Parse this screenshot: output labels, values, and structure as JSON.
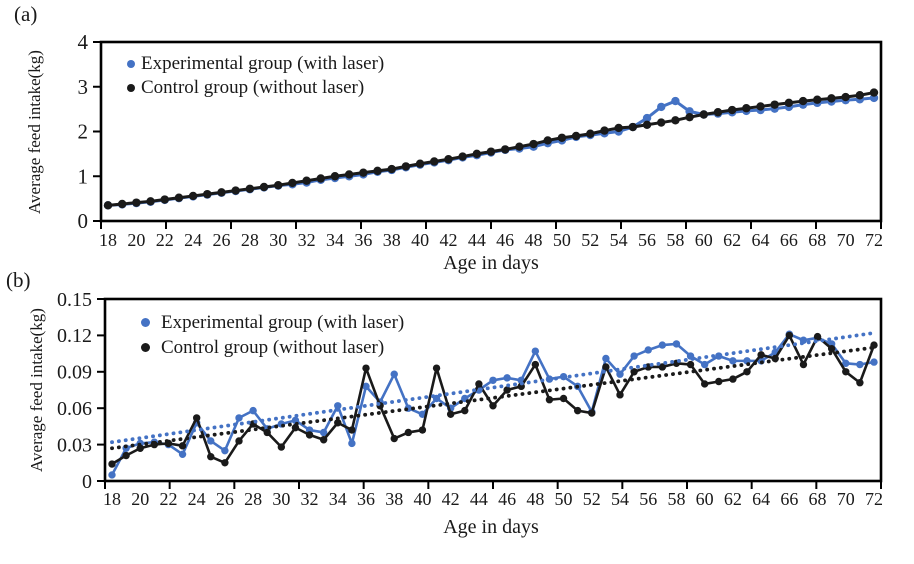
{
  "figure": {
    "background": "#ffffff",
    "text_color": "#1a1a1a",
    "accent_blue": "#4472C4",
    "accent_black": "#1a1a1a"
  },
  "chart_data": [
    {
      "id": "a",
      "type": "line",
      "panel_label": "(a)",
      "xlabel": "Age in days",
      "ylabel": "Average feed intake(kg)",
      "xlim": [
        18,
        72
      ],
      "ylim": [
        0,
        4
      ],
      "grid": false,
      "legend_position": "top-left-inside",
      "x_days": [
        18,
        19,
        20,
        21,
        22,
        23,
        24,
        25,
        26,
        27,
        28,
        29,
        30,
        31,
        32,
        33,
        34,
        35,
        36,
        37,
        38,
        39,
        40,
        41,
        42,
        43,
        44,
        45,
        46,
        47,
        48,
        49,
        50,
        51,
        52,
        53,
        54,
        55,
        56,
        57,
        58,
        59,
        60,
        61,
        62,
        63,
        64,
        65,
        66,
        67,
        68,
        69,
        70,
        71,
        72
      ],
      "xtick_labels": [
        18,
        20,
        22,
        24,
        26,
        28,
        30,
        32,
        34,
        36,
        38,
        40,
        42,
        44,
        46,
        48,
        50,
        52,
        54,
        56,
        58,
        60,
        62,
        64,
        66,
        68,
        70,
        72
      ],
      "xtick_marks": [
        18,
        22.5,
        27,
        31.5,
        36,
        40.5,
        45,
        49.5,
        54,
        58.5,
        63,
        67.5,
        72
      ],
      "yticks": [
        {
          "v": 0,
          "label": "0"
        },
        {
          "v": 1,
          "label": "1"
        },
        {
          "v": 2,
          "label": "2"
        },
        {
          "v": 3,
          "label": "3"
        },
        {
          "v": 4,
          "label": "4"
        }
      ],
      "series": [
        {
          "name": "Experimental group (with laser)",
          "color": "#4472C4",
          "marker": "circle",
          "values": [
            0.35,
            0.37,
            0.4,
            0.43,
            0.47,
            0.51,
            0.55,
            0.59,
            0.63,
            0.67,
            0.71,
            0.75,
            0.79,
            0.82,
            0.86,
            0.92,
            0.96,
            1.0,
            1.04,
            1.1,
            1.14,
            1.2,
            1.26,
            1.31,
            1.36,
            1.42,
            1.47,
            1.53,
            1.59,
            1.62,
            1.66,
            1.74,
            1.8,
            1.88,
            1.92,
            1.96,
            2.0,
            2.1,
            2.3,
            2.55,
            2.68,
            2.45,
            2.38,
            2.4,
            2.43,
            2.46,
            2.48,
            2.51,
            2.55,
            2.6,
            2.64,
            2.67,
            2.7,
            2.72,
            2.75
          ]
        },
        {
          "name": "Control group (without laser)",
          "color": "#1a1a1a",
          "marker": "circle",
          "values": [
            0.35,
            0.38,
            0.41,
            0.44,
            0.48,
            0.52,
            0.56,
            0.6,
            0.64,
            0.68,
            0.72,
            0.76,
            0.8,
            0.85,
            0.9,
            0.95,
            1.0,
            1.04,
            1.08,
            1.12,
            1.16,
            1.22,
            1.28,
            1.33,
            1.38,
            1.44,
            1.5,
            1.55,
            1.6,
            1.66,
            1.72,
            1.8,
            1.86,
            1.9,
            1.95,
            2.02,
            2.08,
            2.1,
            2.15,
            2.2,
            2.25,
            2.32,
            2.38,
            2.43,
            2.48,
            2.52,
            2.56,
            2.6,
            2.64,
            2.68,
            2.71,
            2.74,
            2.77,
            2.81,
            2.87
          ]
        }
      ]
    },
    {
      "id": "b",
      "type": "line",
      "panel_label": "(b)",
      "xlabel": "Age in days",
      "ylabel": "Average feed intake(kg)",
      "xlim": [
        18,
        72
      ],
      "ylim": [
        0,
        0.15
      ],
      "grid": false,
      "legend_position": "top-left-inside",
      "x_days": [
        18,
        19,
        20,
        21,
        22,
        23,
        24,
        25,
        26,
        27,
        28,
        29,
        30,
        31,
        32,
        33,
        34,
        35,
        36,
        37,
        38,
        39,
        40,
        41,
        42,
        43,
        44,
        45,
        46,
        47,
        48,
        49,
        50,
        51,
        52,
        53,
        54,
        55,
        56,
        57,
        58,
        59,
        60,
        61,
        62,
        63,
        64,
        65,
        66,
        67,
        68,
        69,
        70,
        71,
        72
      ],
      "xtick_labels": [
        18,
        20,
        22,
        24,
        26,
        28,
        30,
        32,
        34,
        36,
        38,
        40,
        42,
        44,
        46,
        48,
        50,
        52,
        54,
        56,
        58,
        60,
        62,
        64,
        66,
        68,
        70,
        72
      ],
      "xtick_marks": [
        18,
        22.5,
        27,
        31.5,
        36,
        40.5,
        45,
        49.5,
        54,
        58.5,
        63,
        67.5,
        72
      ],
      "yticks": [
        {
          "v": 0,
          "label": "0"
        },
        {
          "v": 0.03,
          "label": "0.03"
        },
        {
          "v": 0.06,
          "label": "0.06"
        },
        {
          "v": 0.09,
          "label": "0.09"
        },
        {
          "v": 0.12,
          "label": "0.12"
        },
        {
          "v": 0.15,
          "label": "0.15"
        }
      ],
      "series": [
        {
          "name": "Experimental group (with laser)",
          "color": "#4472C4",
          "marker": "circle",
          "trend": {
            "style": "dotted",
            "start": 0.032,
            "end": 0.122
          },
          "values": [
            0.005,
            0.027,
            0.031,
            0.032,
            0.03,
            0.022,
            0.048,
            0.033,
            0.025,
            0.052,
            0.058,
            0.043,
            0.047,
            0.05,
            0.042,
            0.04,
            0.062,
            0.031,
            0.078,
            0.065,
            0.088,
            0.06,
            0.055,
            0.068,
            0.06,
            0.068,
            0.075,
            0.083,
            0.085,
            0.083,
            0.107,
            0.084,
            0.086,
            0.078,
            0.057,
            0.101,
            0.088,
            0.103,
            0.108,
            0.112,
            0.113,
            0.103,
            0.096,
            0.103,
            0.099,
            0.099,
            0.099,
            0.106,
            0.121,
            0.116,
            0.118,
            0.113,
            0.097,
            0.096,
            0.098
          ]
        },
        {
          "name": "Control group (without laser)",
          "color": "#1a1a1a",
          "marker": "circle",
          "trend": {
            "style": "dotted",
            "start": 0.027,
            "end": 0.11
          },
          "values": [
            0.014,
            0.021,
            0.027,
            0.03,
            0.031,
            0.029,
            0.052,
            0.02,
            0.015,
            0.033,
            0.047,
            0.04,
            0.028,
            0.044,
            0.038,
            0.034,
            0.048,
            0.042,
            0.093,
            0.062,
            0.035,
            0.04,
            0.042,
            0.093,
            0.055,
            0.058,
            0.08,
            0.062,
            0.075,
            0.078,
            0.096,
            0.067,
            0.068,
            0.058,
            0.056,
            0.094,
            0.071,
            0.09,
            0.094,
            0.094,
            0.097,
            0.096,
            0.08,
            0.082,
            0.084,
            0.09,
            0.104,
            0.101,
            0.12,
            0.096,
            0.119,
            0.109,
            0.09,
            0.081,
            0.112
          ]
        }
      ]
    }
  ]
}
